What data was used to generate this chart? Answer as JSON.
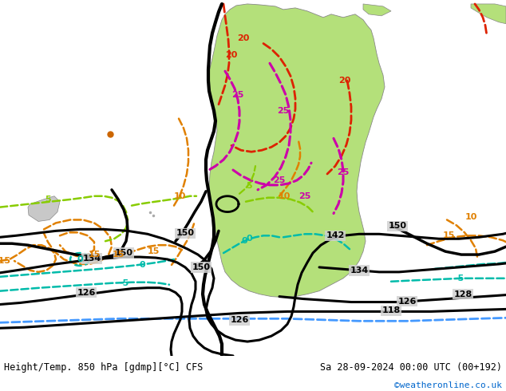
{
  "title_left": "Height/Temp. 850 hPa [gdmp][°C] CFS",
  "title_right": "Sa 28-09-2024 00:00 UTC (00+192)",
  "credit": "©weatheronline.co.uk",
  "credit_color": "#0066cc",
  "map_bg": "#d8d8d8",
  "ocean_color": "#d0d0d0",
  "land_green": "#b4e07a",
  "land_gray": "#c0c0c0",
  "figsize": [
    6.34,
    4.9
  ],
  "dpi": 100
}
